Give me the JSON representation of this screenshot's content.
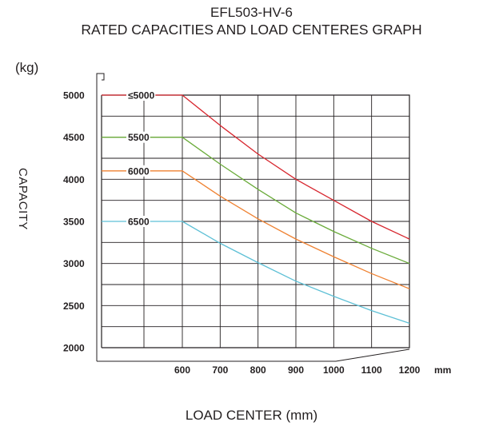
{
  "chart_data": {
    "type": "line",
    "title": "EFL503-HV-6",
    "subtitle": "RATED CAPACITIES AND LOAD CENTERES GRAPH",
    "unit_label": "(kg)",
    "ylabel": "CAPACITY",
    "xlabel": "LOAD CENTER (mm)",
    "x_unit": "mm",
    "x_ticks": [
      "600",
      "700",
      "800",
      "900",
      "1000",
      "1100",
      "1200"
    ],
    "y_ticks": [
      "5000",
      "4500",
      "4000",
      "3500",
      "3000",
      "2500",
      "2000"
    ],
    "xlim": [
      600,
      1200
    ],
    "ylim": [
      2000,
      5000
    ],
    "grid": true,
    "series": [
      {
        "name": "≤5000",
        "color": "#d7262e",
        "points": [
          [
            600,
            5000
          ],
          [
            700,
            4640
          ],
          [
            800,
            4300
          ],
          [
            900,
            4000
          ],
          [
            1000,
            3750
          ],
          [
            1100,
            3500
          ],
          [
            1200,
            3290
          ]
        ]
      },
      {
        "name": "5500",
        "color": "#6aab3a",
        "points": [
          [
            600,
            4500
          ],
          [
            700,
            4180
          ],
          [
            800,
            3880
          ],
          [
            900,
            3600
          ],
          [
            1000,
            3380
          ],
          [
            1100,
            3180
          ],
          [
            1200,
            3000
          ]
        ]
      },
      {
        "name": "6000",
        "color": "#ef8232",
        "points": [
          [
            600,
            4100
          ],
          [
            700,
            3800
          ],
          [
            800,
            3530
          ],
          [
            900,
            3290
          ],
          [
            1000,
            3080
          ],
          [
            1100,
            2880
          ],
          [
            1200,
            2700
          ]
        ]
      },
      {
        "name": "6500",
        "color": "#5ec0d6",
        "points": [
          [
            600,
            3500
          ],
          [
            700,
            3240
          ],
          [
            800,
            3010
          ],
          [
            900,
            2790
          ],
          [
            1000,
            2610
          ],
          [
            1100,
            2440
          ],
          [
            1200,
            2290
          ]
        ]
      }
    ]
  }
}
